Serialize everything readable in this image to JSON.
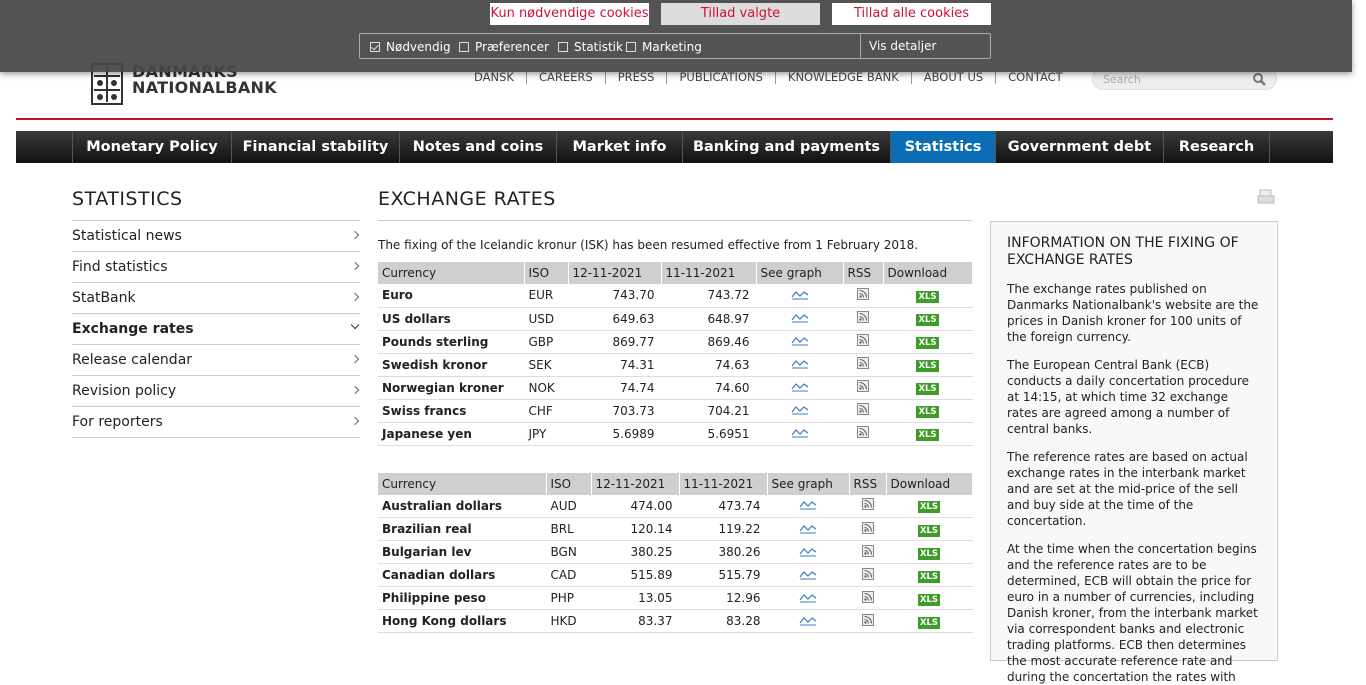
{
  "cookie_banner": {
    "buttons": [
      "Kun nødvendige cookies",
      "Tillad valgte",
      "Tillad alle cookies"
    ],
    "options": [
      "Nødvendig",
      "Præferencer",
      "Statistik",
      "Marketing"
    ],
    "details": "Vis detaljer"
  },
  "header": {
    "logo_lines": [
      "DANMARKS",
      "NATIONALBANK"
    ],
    "top_links": [
      "DANSK",
      "CAREERS",
      "PRESS",
      "PUBLICATIONS",
      "KNOWLEDGE BANK",
      "ABOUT US",
      "CONTACT"
    ],
    "search_placeholder": "Search"
  },
  "nav": [
    "Monetary Policy",
    "Financial stability",
    "Notes and coins",
    "Market info",
    "Banking and payments",
    "Statistics",
    "Government debt",
    "Research"
  ],
  "sidebar": {
    "title": "STATISTICS",
    "items": [
      "Statistical news",
      "Find statistics",
      "StatBank",
      "Exchange rates",
      "Release calendar",
      "Revision policy",
      "For reporters"
    ]
  },
  "main": {
    "title": "EXCHANGE RATES",
    "intro": "The fixing of the Icelandic kronur (ISK) has been resumed effective from 1 February 2018.",
    "xls_label": "XLS",
    "tables": [
      {
        "header": [
          "Currency",
          "ISO",
          "12-11-2021",
          "11-11-2021",
          "See graph",
          "RSS",
          "Download"
        ],
        "rows": [
          [
            "Euro",
            "EUR",
            "743.70",
            "743.72"
          ],
          [
            "US dollars",
            "USD",
            "649.63",
            "648.97"
          ],
          [
            "Pounds sterling",
            "GBP",
            "869.77",
            "869.46"
          ],
          [
            "Swedish kronor",
            "SEK",
            "74.31",
            "74.63"
          ],
          [
            "Norwegian kroner",
            "NOK",
            "74.74",
            "74.60"
          ],
          [
            "Swiss francs",
            "CHF",
            "703.73",
            "704.21"
          ],
          [
            "Japanese yen",
            "JPY",
            "5.6989",
            "5.6951"
          ]
        ]
      },
      {
        "header": [
          "Currency",
          "ISO",
          "12-11-2021",
          "11-11-2021",
          "See graph",
          "RSS",
          "Download"
        ],
        "rows": [
          [
            "Australian dollars",
            "AUD",
            "474.00",
            "473.74"
          ],
          [
            "Brazilian real",
            "BRL",
            "120.14",
            "119.22"
          ],
          [
            "Bulgarian lev",
            "BGN",
            "380.25",
            "380.26"
          ],
          [
            "Canadian dollars",
            "CAD",
            "515.89",
            "515.79"
          ],
          [
            "Philippine peso",
            "PHP",
            "13.05",
            "12.96"
          ],
          [
            "Hong Kong dollars",
            "HKD",
            "83.37",
            "83.28"
          ]
        ]
      }
    ]
  },
  "info_box": {
    "title": "INFORMATION ON THE FIXING OF EXCHANGE RATES",
    "paragraphs": [
      "The exchange rates published on Danmarks Nationalbank's website are the prices in Danish kroner for 100 units of the foreign currency.",
      "The European Central Bank (ECB) conducts a daily concertation procedure at 14:15, at which time 32 exchange rates are agreed among a number of central banks.",
      "The reference rates are based on actual exchange rates in the interbank market and are set at the mid-price of the sell and buy side at the time of the concertation.",
      "At the time when the concertation begins and the reference rates are to be determined, ECB will obtain the price for euro in a number of currencies, including Danish kroner, from the interbank market via correspondent banks and electronic trading platforms. ECB then determines the most accurate reference rate and during the concertation the rates with"
    ]
  }
}
